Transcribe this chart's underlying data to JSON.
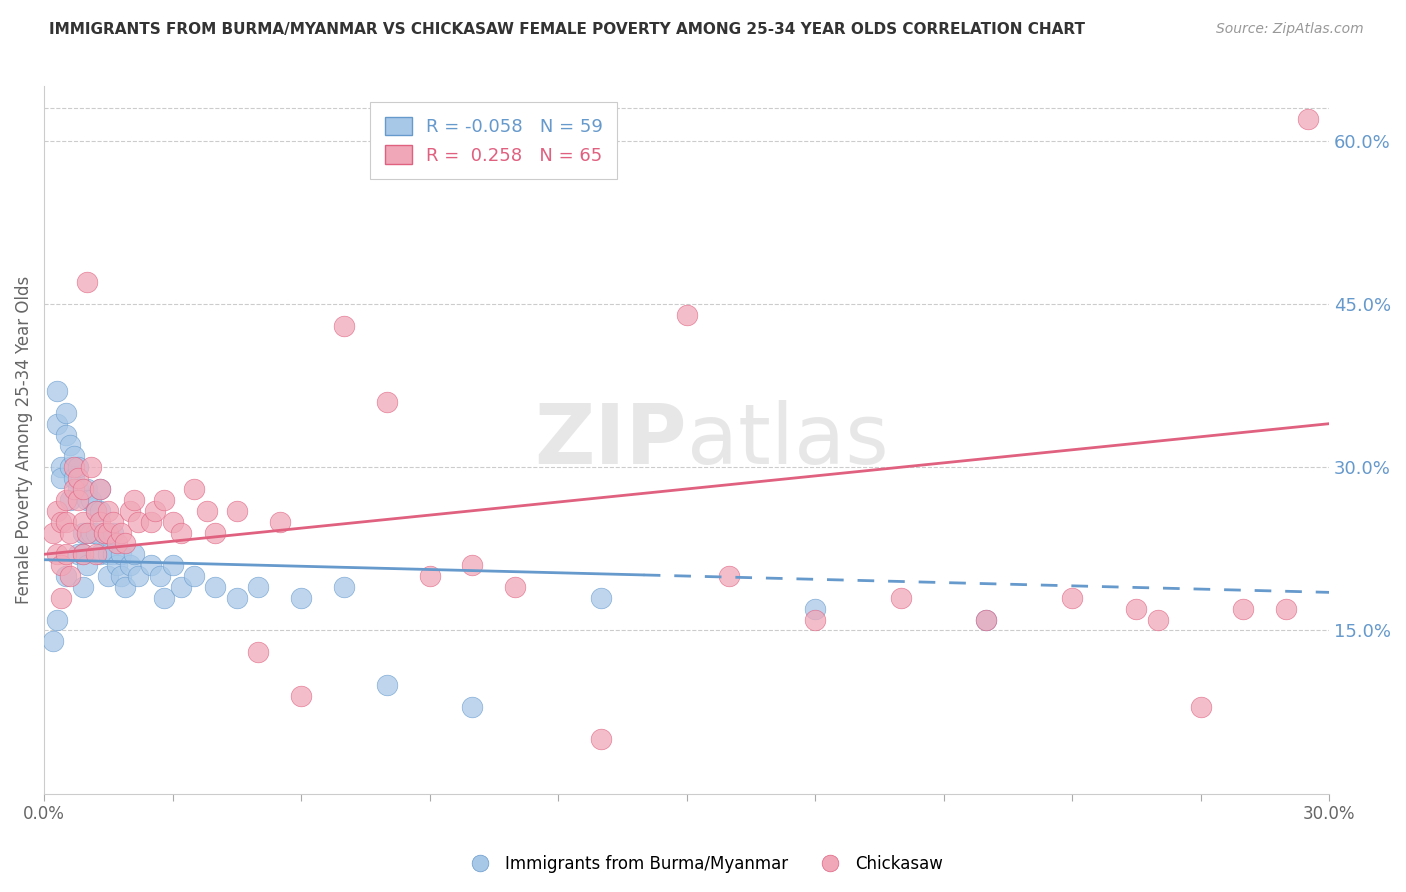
{
  "title": "IMMIGRANTS FROM BURMA/MYANMAR VS CHICKASAW FEMALE POVERTY AMONG 25-34 YEAR OLDS CORRELATION CHART",
  "source": "Source: ZipAtlas.com",
  "ylabel": "Female Poverty Among 25-34 Year Olds",
  "right_yticks": [
    "60.0%",
    "45.0%",
    "30.0%",
    "15.0%"
  ],
  "right_ytick_vals": [
    0.6,
    0.45,
    0.3,
    0.15
  ],
  "x_min": 0.0,
  "x_max": 0.3,
  "y_min": 0.0,
  "y_max": 0.65,
  "color_blue": "#a8c8e8",
  "color_pink": "#f0a8b8",
  "line_blue": "#6699cc",
  "line_pink": "#e06080",
  "watermark_zip": "ZIP",
  "watermark_atlas": "atlas",
  "series1_name": "Immigrants from Burma/Myanmar",
  "series2_name": "Chickasaw",
  "blue_R": -0.058,
  "blue_N": 59,
  "pink_R": 0.258,
  "pink_N": 65,
  "blue_intercept": 0.215,
  "blue_slope": -0.1,
  "pink_intercept": 0.22,
  "pink_slope": 0.4,
  "blue_x": [
    0.002,
    0.003,
    0.003,
    0.003,
    0.004,
    0.004,
    0.005,
    0.005,
    0.005,
    0.006,
    0.006,
    0.006,
    0.007,
    0.007,
    0.008,
    0.008,
    0.008,
    0.009,
    0.009,
    0.009,
    0.01,
    0.01,
    0.01,
    0.01,
    0.011,
    0.011,
    0.012,
    0.012,
    0.013,
    0.013,
    0.013,
    0.014,
    0.015,
    0.015,
    0.016,
    0.016,
    0.017,
    0.018,
    0.018,
    0.019,
    0.02,
    0.021,
    0.022,
    0.025,
    0.027,
    0.028,
    0.03,
    0.032,
    0.035,
    0.04,
    0.045,
    0.05,
    0.06,
    0.07,
    0.08,
    0.1,
    0.13,
    0.18,
    0.22
  ],
  "blue_y": [
    0.14,
    0.37,
    0.34,
    0.16,
    0.3,
    0.29,
    0.35,
    0.33,
    0.2,
    0.32,
    0.3,
    0.27,
    0.31,
    0.29,
    0.3,
    0.28,
    0.22,
    0.24,
    0.22,
    0.19,
    0.28,
    0.27,
    0.24,
    0.21,
    0.27,
    0.24,
    0.26,
    0.24,
    0.28,
    0.26,
    0.22,
    0.24,
    0.22,
    0.2,
    0.24,
    0.22,
    0.21,
    0.22,
    0.2,
    0.19,
    0.21,
    0.22,
    0.2,
    0.21,
    0.2,
    0.18,
    0.21,
    0.19,
    0.2,
    0.19,
    0.18,
    0.19,
    0.18,
    0.19,
    0.1,
    0.08,
    0.18,
    0.17,
    0.16
  ],
  "pink_x": [
    0.002,
    0.003,
    0.003,
    0.004,
    0.004,
    0.004,
    0.005,
    0.005,
    0.005,
    0.006,
    0.006,
    0.007,
    0.007,
    0.008,
    0.008,
    0.009,
    0.009,
    0.009,
    0.01,
    0.01,
    0.011,
    0.012,
    0.012,
    0.013,
    0.013,
    0.014,
    0.015,
    0.015,
    0.016,
    0.017,
    0.018,
    0.019,
    0.02,
    0.021,
    0.022,
    0.025,
    0.026,
    0.028,
    0.03,
    0.032,
    0.035,
    0.038,
    0.04,
    0.045,
    0.05,
    0.055,
    0.06,
    0.07,
    0.08,
    0.09,
    0.1,
    0.11,
    0.13,
    0.15,
    0.16,
    0.18,
    0.2,
    0.22,
    0.24,
    0.255,
    0.26,
    0.27,
    0.28,
    0.29,
    0.295
  ],
  "pink_y": [
    0.24,
    0.26,
    0.22,
    0.25,
    0.21,
    0.18,
    0.27,
    0.25,
    0.22,
    0.24,
    0.2,
    0.3,
    0.28,
    0.29,
    0.27,
    0.28,
    0.25,
    0.22,
    0.47,
    0.24,
    0.3,
    0.26,
    0.22,
    0.28,
    0.25,
    0.24,
    0.26,
    0.24,
    0.25,
    0.23,
    0.24,
    0.23,
    0.26,
    0.27,
    0.25,
    0.25,
    0.26,
    0.27,
    0.25,
    0.24,
    0.28,
    0.26,
    0.24,
    0.26,
    0.13,
    0.25,
    0.09,
    0.43,
    0.36,
    0.2,
    0.21,
    0.19,
    0.05,
    0.44,
    0.2,
    0.16,
    0.18,
    0.16,
    0.18,
    0.17,
    0.16,
    0.08,
    0.17,
    0.17,
    0.62
  ]
}
